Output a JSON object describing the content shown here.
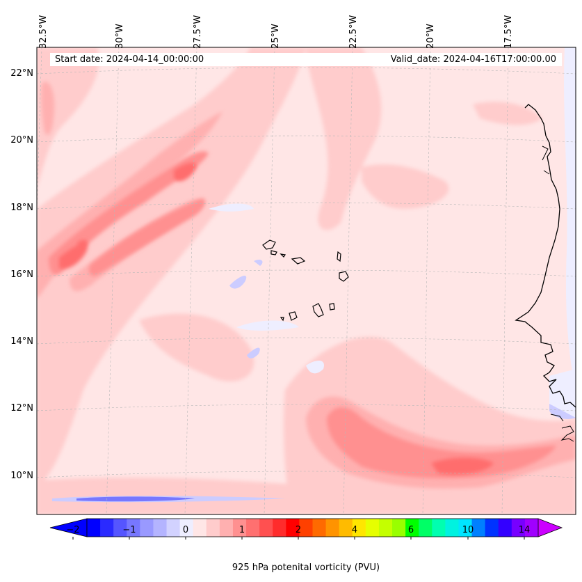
{
  "header": {
    "start_date": "Start date: 2024-04-14_00:00:00",
    "valid_date": "Valid_date: 2024-04-16T17:00:00.00"
  },
  "map": {
    "longitude_labels": [
      "32.5°W",
      "30°W",
      "27.5°W",
      "25°W",
      "22.5°W",
      "20°W",
      "17.5°W"
    ],
    "latitude_labels": [
      "22°N",
      "20°N",
      "18°N",
      "16°N",
      "14°N",
      "12°N",
      "10°N"
    ],
    "extent": {
      "lon_min": -33,
      "lon_max": -16,
      "lat_min": 9,
      "lat_max": 23
    },
    "field": "925 hPa potential vorticity",
    "background_color": "#ffe6e6",
    "coastline_color": "#000000"
  },
  "colorbar": {
    "label": "925 hPa potenital vorticity (PVU)",
    "tick_labels": [
      "−2",
      "−1",
      "0",
      "1",
      "2",
      "4",
      "6",
      "10",
      "14"
    ],
    "colors": [
      "#0000ff",
      "#2a2aff",
      "#5555ff",
      "#7777ff",
      "#9999ff",
      "#b4b4ff",
      "#d2d2ff",
      "#eeeeff",
      "#ffe6e6",
      "#ffcccc",
      "#ffb0b0",
      "#ff9090",
      "#ff7070",
      "#ff5050",
      "#ff2c2c",
      "#ff0000",
      "#ff4000",
      "#ff6a00",
      "#ff9300",
      "#ffbb00",
      "#ffe600",
      "#e6ff00",
      "#c4ff00",
      "#99ff00",
      "#00ff00",
      "#00ff66",
      "#00ffb0",
      "#00f2e0",
      "#00e5ff",
      "#0080ff",
      "#0033ff",
      "#3300ff",
      "#7700ff",
      "#a000ff"
    ],
    "extend_min_color": "#0000ff",
    "extend_max_color": "#cc00ff"
  }
}
